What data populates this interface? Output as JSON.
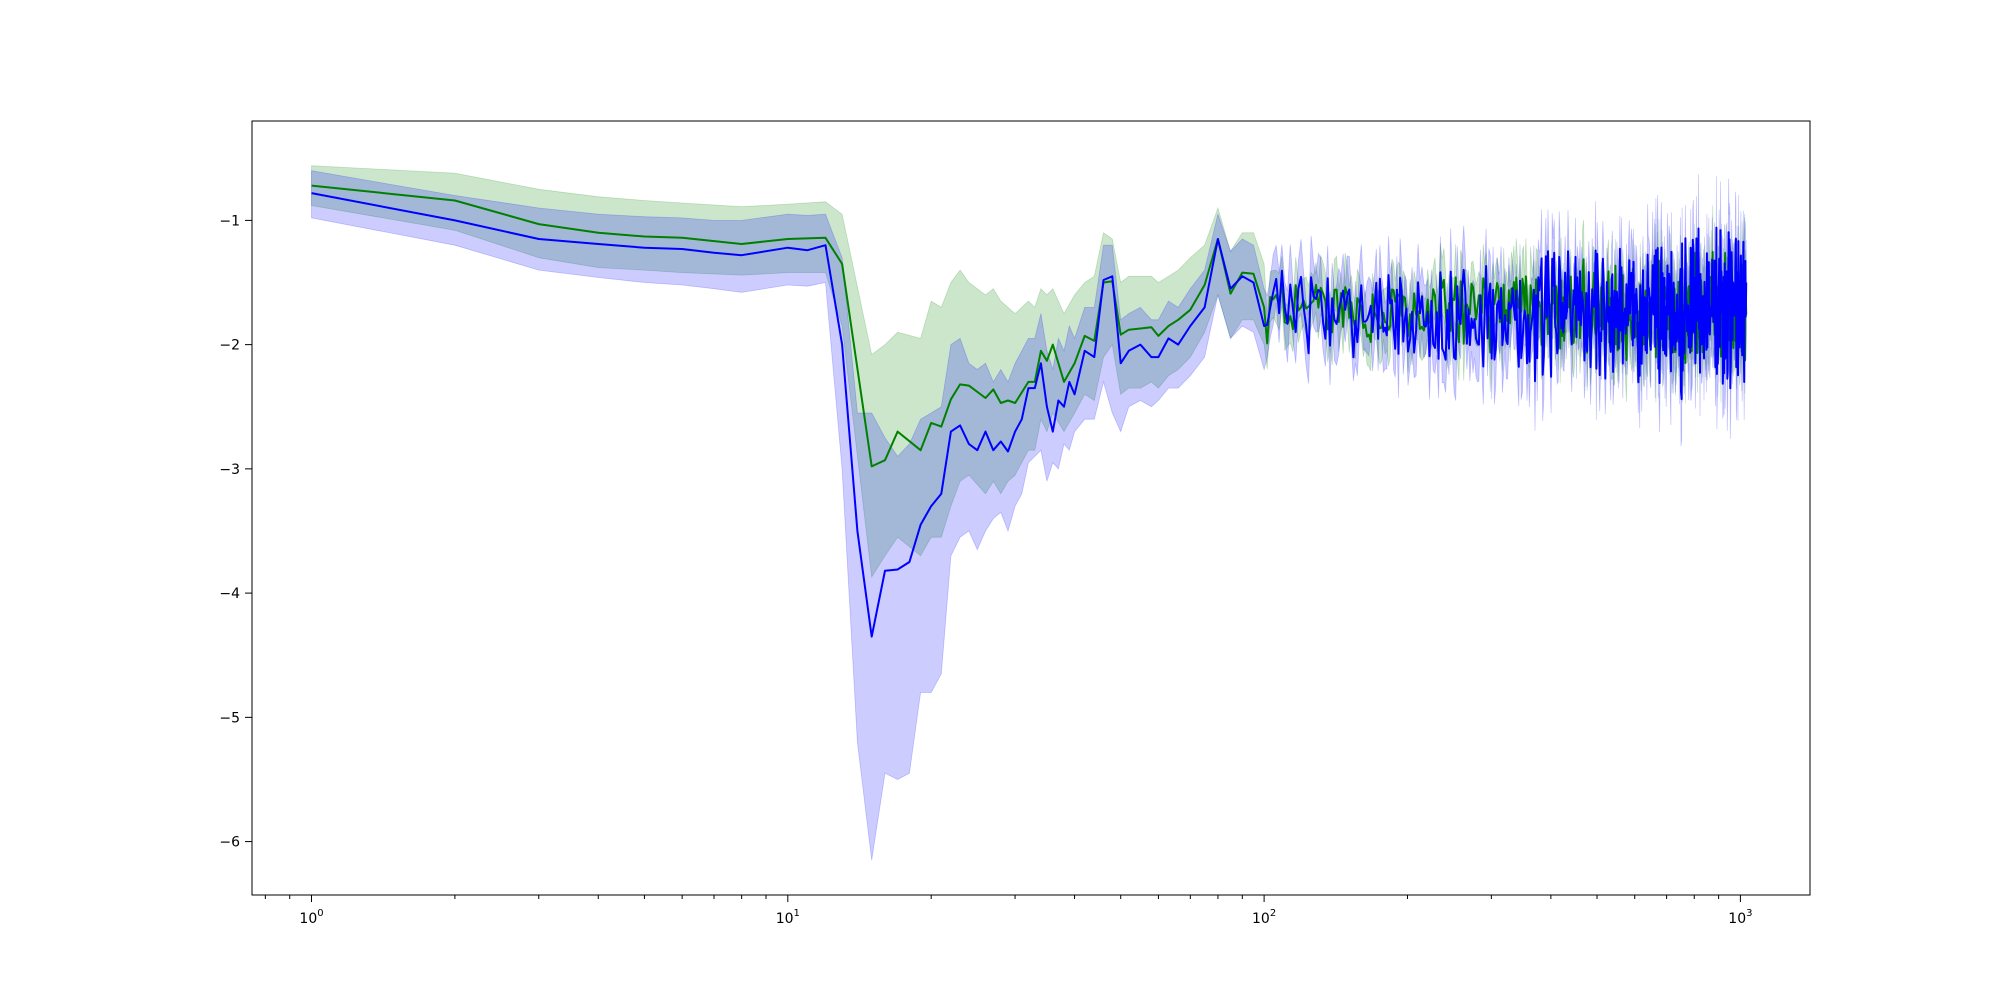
{
  "chart_data": {
    "type": "line",
    "title": "",
    "xlabel": "",
    "ylabel": "",
    "xscale": "log",
    "xlim": [
      0.75,
      1400
    ],
    "ylim": [
      -6.43,
      -0.2
    ],
    "grid": false,
    "legend": "none",
    "x_ticks": [
      {
        "value": 1,
        "base": "10",
        "exp": "0"
      },
      {
        "value": 10,
        "base": "10",
        "exp": "1"
      },
      {
        "value": 100,
        "base": "10",
        "exp": "2"
      },
      {
        "value": 1000,
        "base": "10",
        "exp": "3"
      }
    ],
    "y_ticks": [
      {
        "value": -1,
        "label": "−1"
      },
      {
        "value": -2,
        "label": "−2"
      },
      {
        "value": -3,
        "label": "−3"
      },
      {
        "value": -4,
        "label": "−4"
      },
      {
        "value": -5,
        "label": "−5"
      },
      {
        "value": -6,
        "label": "−6"
      }
    ],
    "series": [
      {
        "color": "#008000",
        "band_color": "#008000",
        "band_opacity": 0.2,
        "x": [
          1,
          2,
          3,
          4,
          5,
          6,
          8,
          10,
          12,
          13,
          15,
          16,
          17,
          19,
          20,
          21,
          22,
          23,
          24,
          26,
          27,
          28,
          29,
          30,
          32,
          33,
          34,
          35,
          36,
          38,
          40,
          42,
          44,
          46,
          48,
          50,
          52,
          55,
          58,
          60,
          63,
          66,
          70,
          75,
          80,
          85,
          90,
          95,
          100
        ],
        "y": [
          -0.72,
          -0.84,
          -1.03,
          -1.1,
          -1.13,
          -1.14,
          -1.19,
          -1.15,
          -1.14,
          -1.35,
          -2.98,
          -2.93,
          -2.7,
          -2.85,
          -2.63,
          -2.66,
          -2.44,
          -2.32,
          -2.33,
          -2.43,
          -2.36,
          -2.47,
          -2.45,
          -2.47,
          -2.3,
          -2.3,
          -2.05,
          -2.13,
          -2.0,
          -2.3,
          -2.15,
          -1.93,
          -1.97,
          -1.5,
          -1.49,
          -1.92,
          -1.88,
          -1.87,
          -1.86,
          -1.93,
          -1.85,
          -1.8,
          -1.72,
          -1.52,
          -1.15,
          -1.59,
          -1.42,
          -1.43,
          -1.7
        ],
        "low": [
          -0.88,
          -1.08,
          -1.3,
          -1.38,
          -1.4,
          -1.42,
          -1.44,
          -1.42,
          -1.42,
          -1.85,
          -3.87,
          -3.7,
          -3.55,
          -3.7,
          -3.55,
          -3.55,
          -3.3,
          -3.1,
          -3.05,
          -3.2,
          -3.1,
          -3.2,
          -3.1,
          -3.05,
          -2.85,
          -2.85,
          -2.6,
          -2.7,
          -2.55,
          -2.7,
          -2.55,
          -2.4,
          -2.45,
          -2.1,
          -2.0,
          -2.4,
          -2.35,
          -2.35,
          -2.3,
          -2.35,
          -2.25,
          -2.2,
          -2.1,
          -1.9,
          -1.6,
          -1.95,
          -1.8,
          -1.8,
          -2.0
        ],
        "high": [
          -0.56,
          -0.62,
          -0.75,
          -0.81,
          -0.84,
          -0.86,
          -0.89,
          -0.87,
          -0.85,
          -0.95,
          -2.08,
          -2.0,
          -1.9,
          -1.95,
          -1.65,
          -1.7,
          -1.5,
          -1.4,
          -1.5,
          -1.6,
          -1.55,
          -1.65,
          -1.7,
          -1.75,
          -1.65,
          -1.7,
          -1.55,
          -1.6,
          -1.55,
          -1.75,
          -1.6,
          -1.5,
          -1.45,
          -1.1,
          -1.15,
          -1.5,
          -1.45,
          -1.45,
          -1.45,
          -1.5,
          -1.45,
          -1.4,
          -1.3,
          -1.2,
          -0.9,
          -1.25,
          -1.1,
          -1.1,
          -1.35
        ]
      },
      {
        "color": "#0000ff",
        "band_color": "#0000ff",
        "band_opacity": 0.2,
        "x": [
          1,
          2,
          3,
          4,
          5,
          6,
          7,
          8,
          10,
          11,
          12,
          13,
          14,
          15,
          16,
          17,
          18,
          19,
          20,
          21,
          22,
          23,
          24,
          25,
          26,
          27,
          28,
          29,
          30,
          31,
          32,
          33,
          34,
          35,
          36,
          37,
          38,
          39,
          40,
          42,
          44,
          46,
          48,
          50,
          52,
          55,
          58,
          60,
          63,
          66,
          70,
          75,
          80,
          85,
          90,
          95,
          100
        ],
        "y": [
          -0.78,
          -1.0,
          -1.15,
          -1.19,
          -1.22,
          -1.23,
          -1.26,
          -1.28,
          -1.22,
          -1.24,
          -1.2,
          -2.0,
          -3.5,
          -4.35,
          -3.82,
          -3.81,
          -3.75,
          -3.45,
          -3.3,
          -3.2,
          -2.7,
          -2.65,
          -2.8,
          -2.85,
          -2.7,
          -2.85,
          -2.78,
          -2.86,
          -2.7,
          -2.6,
          -2.35,
          -2.35,
          -2.15,
          -2.5,
          -2.7,
          -2.45,
          -2.5,
          -2.3,
          -2.4,
          -2.05,
          -2.1,
          -1.48,
          -1.45,
          -2.15,
          -2.05,
          -2.0,
          -2.1,
          -2.1,
          -1.95,
          -2.0,
          -1.85,
          -1.7,
          -1.15,
          -1.55,
          -1.45,
          -1.5,
          -1.85
        ],
        "low": [
          -0.98,
          -1.2,
          -1.4,
          -1.46,
          -1.5,
          -1.52,
          -1.55,
          -1.58,
          -1.52,
          -1.53,
          -1.5,
          -3.0,
          -5.2,
          -6.15,
          -5.45,
          -5.5,
          -5.45,
          -4.8,
          -4.8,
          -4.65,
          -3.7,
          -3.55,
          -3.5,
          -3.65,
          -3.5,
          -3.4,
          -3.35,
          -3.5,
          -3.3,
          -3.2,
          -2.95,
          -2.9,
          -2.85,
          -3.1,
          -2.95,
          -3.0,
          -2.8,
          -2.85,
          -2.7,
          -2.6,
          -2.6,
          -2.3,
          -2.55,
          -2.7,
          -2.5,
          -2.45,
          -2.5,
          -2.45,
          -2.35,
          -2.35,
          -2.25,
          -2.1,
          -1.6,
          -1.95,
          -1.85,
          -1.9,
          -2.2
        ],
        "high": [
          -0.6,
          -0.8,
          -0.9,
          -0.95,
          -0.97,
          -0.98,
          -1.0,
          -1.0,
          -0.95,
          -0.96,
          -0.95,
          -1.3,
          -2.55,
          -2.55,
          -2.75,
          -2.9,
          -2.8,
          -2.6,
          -2.55,
          -2.5,
          -2.0,
          -1.95,
          -2.15,
          -2.2,
          -2.15,
          -2.3,
          -2.2,
          -2.3,
          -2.15,
          -2.05,
          -1.95,
          -1.95,
          -1.75,
          -2.05,
          -2.2,
          -1.95,
          -2.05,
          -1.85,
          -1.95,
          -1.7,
          -1.7,
          -1.2,
          -1.2,
          -1.8,
          -1.75,
          -1.7,
          -1.8,
          -1.8,
          -1.65,
          -1.7,
          -1.55,
          -1.4,
          -0.95,
          -1.25,
          -1.15,
          -1.2,
          -1.55
        ]
      }
    ],
    "noisy_tail": {
      "description_free": true,
      "x_range": [
        100,
        1030
      ],
      "green": {
        "mean": -1.72,
        "amplitude_start": 0.2,
        "amplitude_end": 0.35,
        "band_halfwidth_start": 0.2,
        "band_halfwidth_end": 0.3
      },
      "blue": {
        "mean": -1.75,
        "amplitude_start": 0.25,
        "amplitude_end": 0.55,
        "band_halfwidth_start": 0.25,
        "band_halfwidth_end": 0.35
      }
    }
  }
}
